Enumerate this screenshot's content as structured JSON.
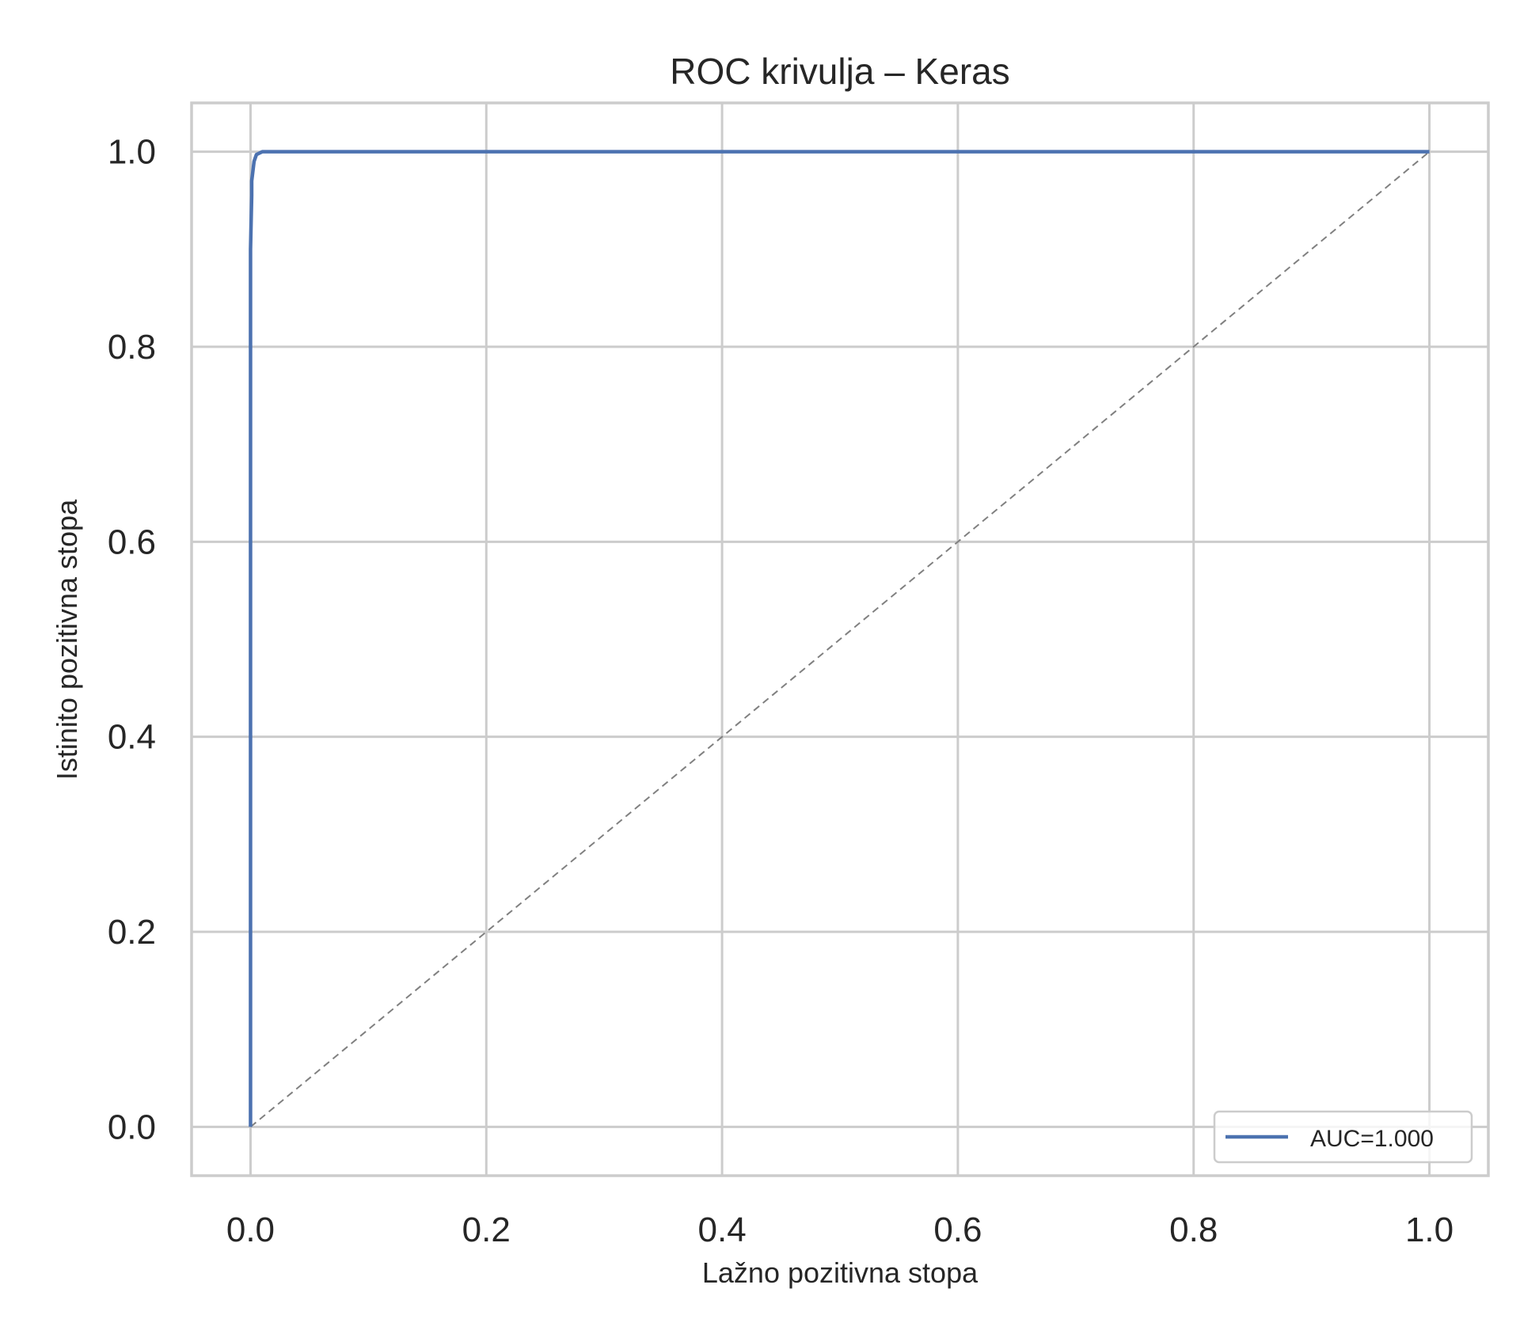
{
  "chart_data": {
    "type": "line",
    "title": "ROC krivulja – Keras",
    "xlabel": "Lažno pozitivna stopa",
    "ylabel": "Istinito pozitivna stopa",
    "xlim": [
      -0.05,
      1.05
    ],
    "ylim": [
      -0.05,
      1.05
    ],
    "xticks": [
      0.0,
      0.2,
      0.4,
      0.6,
      0.8,
      1.0
    ],
    "xtick_labels": [
      "0.0",
      "0.2",
      "0.4",
      "0.6",
      "0.8",
      "1.0"
    ],
    "yticks": [
      0.0,
      0.2,
      0.4,
      0.6,
      0.8,
      1.0
    ],
    "ytick_labels": [
      "0.0",
      "0.2",
      "0.4",
      "0.6",
      "0.8",
      "1.0"
    ],
    "grid": true,
    "legend_position": "lower-right",
    "series": [
      {
        "name": "AUC=1.000",
        "color": "#4c72b0",
        "style": "solid",
        "x": [
          0.0,
          0.0,
          0.0,
          0.001,
          0.001,
          0.002,
          0.003,
          0.005,
          0.01,
          0.2,
          0.5,
          1.0
        ],
        "y": [
          0.0,
          0.5,
          0.9,
          0.955,
          0.97,
          0.98,
          0.99,
          0.997,
          1.0,
          1.0,
          1.0,
          1.0
        ]
      },
      {
        "name": "",
        "color": "#808080",
        "style": "dashed",
        "x": [
          0.0,
          1.0
        ],
        "y": [
          0.0,
          1.0
        ]
      }
    ]
  }
}
